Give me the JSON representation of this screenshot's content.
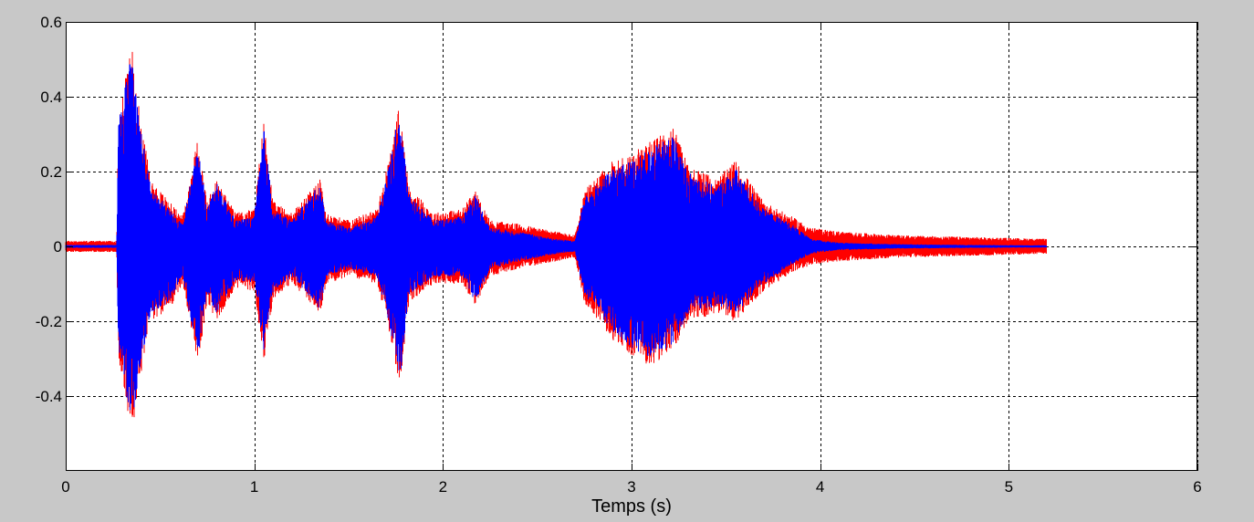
{
  "chart_data": {
    "type": "line",
    "xlabel": "Temps (s)",
    "ylabel": "",
    "title": "",
    "xlim": [
      0,
      6
    ],
    "ylim": [
      -0.6,
      0.6
    ],
    "xticks": [
      0,
      1,
      2,
      3,
      4,
      5,
      6
    ],
    "xtick_labels": [
      "0",
      "1",
      "2",
      "3",
      "4",
      "5",
      "6"
    ],
    "yticks": [
      -0.4,
      -0.2,
      0,
      0.2,
      0.4,
      0.6
    ],
    "ytick_labels": [
      "-0.4",
      "-0.2",
      "0",
      "0.2",
      "0.4",
      "0.6"
    ],
    "grid": true,
    "background": "#c8c8c8",
    "plot_background": "#ffffff",
    "series": [
      {
        "color": "#ff0000",
        "envelope": {
          "t": [
            0.0,
            0.27,
            0.28,
            0.35,
            0.38,
            0.45,
            0.55,
            0.62,
            0.7,
            0.75,
            0.8,
            0.9,
            1.0,
            1.05,
            1.1,
            1.2,
            1.35,
            1.38,
            1.5,
            1.65,
            1.72,
            1.77,
            1.82,
            1.95,
            2.1,
            2.17,
            2.25,
            2.4,
            2.6,
            2.7,
            2.75,
            2.9,
            3.0,
            3.1,
            3.22,
            3.3,
            3.45,
            3.55,
            3.7,
            3.85,
            3.95,
            4.1,
            4.4,
            4.8,
            5.2
          ],
          "max": [
            0.015,
            0.015,
            0.35,
            0.54,
            0.4,
            0.18,
            0.12,
            0.08,
            0.29,
            0.12,
            0.18,
            0.09,
            0.1,
            0.34,
            0.12,
            0.09,
            0.18,
            0.09,
            0.07,
            0.1,
            0.25,
            0.38,
            0.16,
            0.09,
            0.1,
            0.15,
            0.07,
            0.06,
            0.04,
            0.03,
            0.15,
            0.23,
            0.25,
            0.28,
            0.32,
            0.22,
            0.18,
            0.23,
            0.12,
            0.08,
            0.05,
            0.04,
            0.03,
            0.025,
            0.02
          ],
          "min": [
            -0.015,
            -0.015,
            -0.3,
            -0.5,
            -0.4,
            -0.2,
            -0.17,
            -0.1,
            -0.32,
            -0.15,
            -0.2,
            -0.11,
            -0.12,
            -0.31,
            -0.14,
            -0.1,
            -0.18,
            -0.1,
            -0.08,
            -0.1,
            -0.24,
            -0.38,
            -0.15,
            -0.1,
            -0.1,
            -0.16,
            -0.08,
            -0.06,
            -0.04,
            -0.03,
            -0.15,
            -0.25,
            -0.29,
            -0.32,
            -0.28,
            -0.2,
            -0.18,
            -0.2,
            -0.12,
            -0.07,
            -0.05,
            -0.04,
            -0.03,
            -0.025,
            -0.02
          ]
        }
      },
      {
        "color": "#0000ff",
        "envelope": {
          "t": [
            0.0,
            0.27,
            0.28,
            0.35,
            0.38,
            0.45,
            0.55,
            0.62,
            0.7,
            0.75,
            0.8,
            0.9,
            1.0,
            1.05,
            1.1,
            1.2,
            1.35,
            1.38,
            1.5,
            1.65,
            1.72,
            1.77,
            1.82,
            1.95,
            2.1,
            2.17,
            2.25,
            2.4,
            2.6,
            2.7,
            2.75,
            2.9,
            3.0,
            3.1,
            3.22,
            3.3,
            3.45,
            3.55,
            3.7,
            3.85,
            3.95,
            4.1,
            4.4,
            4.8,
            5.2
          ],
          "max": [
            0.004,
            0.004,
            0.33,
            0.53,
            0.38,
            0.16,
            0.1,
            0.06,
            0.27,
            0.1,
            0.17,
            0.07,
            0.08,
            0.32,
            0.1,
            0.07,
            0.17,
            0.07,
            0.05,
            0.08,
            0.23,
            0.37,
            0.14,
            0.07,
            0.08,
            0.14,
            0.05,
            0.04,
            0.02,
            0.015,
            0.13,
            0.21,
            0.23,
            0.26,
            0.3,
            0.2,
            0.16,
            0.21,
            0.1,
            0.06,
            0.02,
            0.01,
            0.006,
            0.004,
            0.003
          ],
          "min": [
            -0.004,
            -0.004,
            -0.28,
            -0.49,
            -0.38,
            -0.18,
            -0.15,
            -0.08,
            -0.3,
            -0.13,
            -0.18,
            -0.09,
            -0.1,
            -0.29,
            -0.12,
            -0.08,
            -0.17,
            -0.08,
            -0.06,
            -0.08,
            -0.22,
            -0.37,
            -0.13,
            -0.08,
            -0.08,
            -0.15,
            -0.06,
            -0.04,
            -0.02,
            -0.015,
            -0.13,
            -0.23,
            -0.27,
            -0.3,
            -0.26,
            -0.18,
            -0.16,
            -0.18,
            -0.1,
            -0.05,
            -0.02,
            -0.01,
            -0.006,
            -0.004,
            -0.003
          ]
        }
      }
    ]
  }
}
